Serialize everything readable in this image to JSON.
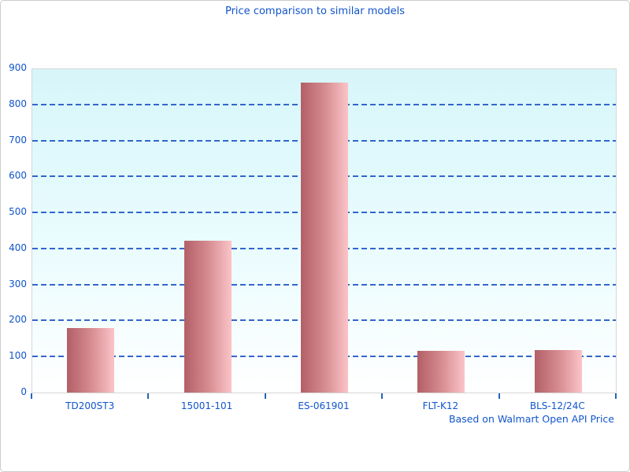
{
  "chart_data": {
    "type": "bar",
    "title": "Price comparison to similar models",
    "source_note": "Based on Walmart Open API Price",
    "categories": [
      "TD200ST3",
      "15001-101",
      "ES-061901",
      "FLT-K12",
      "BLS-12/24C"
    ],
    "values": [
      180,
      422,
      861,
      116,
      119
    ],
    "xlabel": "",
    "ylabel": "",
    "ylim": [
      0,
      900
    ],
    "yticks": [
      0,
      100,
      200,
      300,
      400,
      500,
      600,
      700,
      800,
      900
    ],
    "grid": "horizontal-dashed",
    "legend": "none",
    "colors": {
      "text_blue": "#1155cc",
      "gridline_blue": "#3366cc",
      "tick_blue": "#2266bb",
      "bar_gradient_left": "#b25f66",
      "bar_gradient_right": "#fbc4c8",
      "plot_bg_top": "#d7f6fa",
      "plot_bg_bottom": "#ffffff",
      "plot_border": "#d6d6d6",
      "frame_border": "#cccccc"
    }
  }
}
